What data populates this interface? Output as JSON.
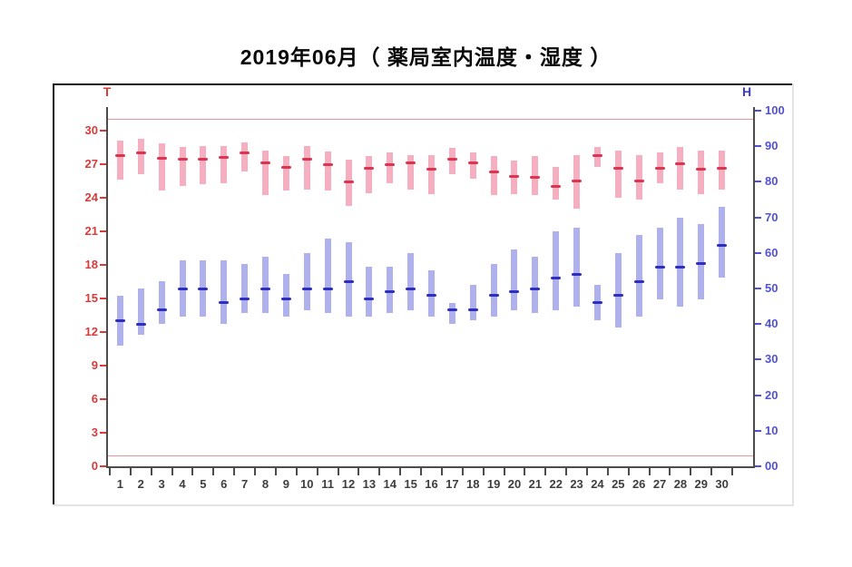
{
  "title": "2019年06月（ 薬局室内温度・湿度 ）",
  "axes": {
    "left": {
      "label": "T",
      "color": "#d93b3b",
      "values": [
        0,
        3,
        6,
        9,
        12,
        15,
        18,
        21,
        24,
        27,
        30
      ],
      "tick_labels": [
        "0",
        "3",
        "6",
        "9",
        "12",
        "15",
        "18",
        "21",
        "24",
        "27",
        "30"
      ]
    },
    "right": {
      "label": "H",
      "color": "#5151d4",
      "values": [
        0,
        10,
        20,
        30,
        40,
        50,
        60,
        70,
        80,
        90,
        100
      ],
      "tick_labels": [
        "00",
        "10",
        "20",
        "30",
        "40",
        "50",
        "60",
        "70",
        "80",
        "90",
        "100"
      ]
    },
    "x": {
      "color": "#3e3e3e"
    }
  },
  "reference_lines": {
    "upper_t": 31,
    "lower_t": 1,
    "color": "#ef9394"
  },
  "chart_data": {
    "type": "bar",
    "subtype": "high-low-mean floating range bars, dual y-axis",
    "title": "2019年06月（ 薬局室内温度・湿度 ）",
    "categories": [
      1,
      2,
      3,
      4,
      5,
      6,
      7,
      8,
      9,
      10,
      11,
      12,
      13,
      14,
      15,
      16,
      17,
      18,
      19,
      20,
      21,
      22,
      23,
      24,
      25,
      26,
      27,
      28,
      29,
      30
    ],
    "xlabel": "",
    "ylabel_left": "T",
    "ylabel_right": "H",
    "ylim_left": [
      0,
      32
    ],
    "ylim_right": [
      0,
      101
    ],
    "grid": false,
    "legend": "none",
    "series": [
      {
        "name": "温度 (T)",
        "axis": "left",
        "bar_color": "#f6afc1",
        "mean_color": "#dd3550",
        "min": [
          25.6,
          26.1,
          24.6,
          25.0,
          25.2,
          25.3,
          26.3,
          24.2,
          24.6,
          24.7,
          24.6,
          23.2,
          24.4,
          25.3,
          24.7,
          24.3,
          26.1,
          25.7,
          24.2,
          24.3,
          24.2,
          23.8,
          23.0,
          26.7,
          24.0,
          23.8,
          25.3,
          24.7,
          24.3,
          24.7
        ],
        "mean": [
          27.7,
          28.0,
          27.5,
          27.4,
          27.4,
          27.6,
          28.0,
          27.1,
          26.7,
          27.4,
          26.9,
          25.4,
          26.6,
          26.9,
          27.1,
          26.5,
          27.4,
          27.1,
          26.3,
          25.9,
          25.8,
          25.0,
          25.5,
          27.7,
          26.6,
          25.5,
          26.6,
          27.0,
          26.5,
          26.6
        ],
        "max": [
          29.1,
          29.2,
          28.8,
          28.5,
          28.6,
          28.6,
          28.9,
          28.2,
          27.7,
          28.6,
          28.1,
          27.4,
          27.7,
          28.0,
          27.8,
          27.8,
          28.4,
          28.0,
          27.7,
          27.3,
          27.7,
          26.7,
          27.8,
          28.5,
          28.2,
          27.8,
          28.0,
          28.5,
          28.2,
          28.2
        ]
      },
      {
        "name": "湿度 (H)",
        "axis": "right",
        "bar_color": "#aeb1eb",
        "mean_color": "#2e2ec2",
        "min": [
          34,
          37,
          40,
          42,
          42,
          40,
          43,
          43,
          42,
          44,
          43,
          42,
          42,
          43,
          44,
          42,
          40,
          41,
          42,
          44,
          43,
          44,
          45,
          41,
          39,
          42,
          47,
          45,
          47,
          53
        ],
        "mean": [
          41,
          40,
          44,
          50,
          50,
          46,
          47,
          50,
          47,
          50,
          50,
          52,
          47,
          49,
          50,
          48,
          44,
          44,
          48,
          49,
          50,
          53,
          54,
          46,
          48,
          52,
          56,
          56,
          57,
          62
        ],
        "max": [
          48,
          50,
          52,
          58,
          58,
          58,
          57,
          59,
          54,
          60,
          64,
          63,
          56,
          56,
          60,
          55,
          46,
          51,
          57,
          61,
          59,
          66,
          67,
          51,
          60,
          65,
          67,
          70,
          68,
          73
        ]
      }
    ],
    "reference_lines_left_axis": [
      1,
      31
    ]
  }
}
